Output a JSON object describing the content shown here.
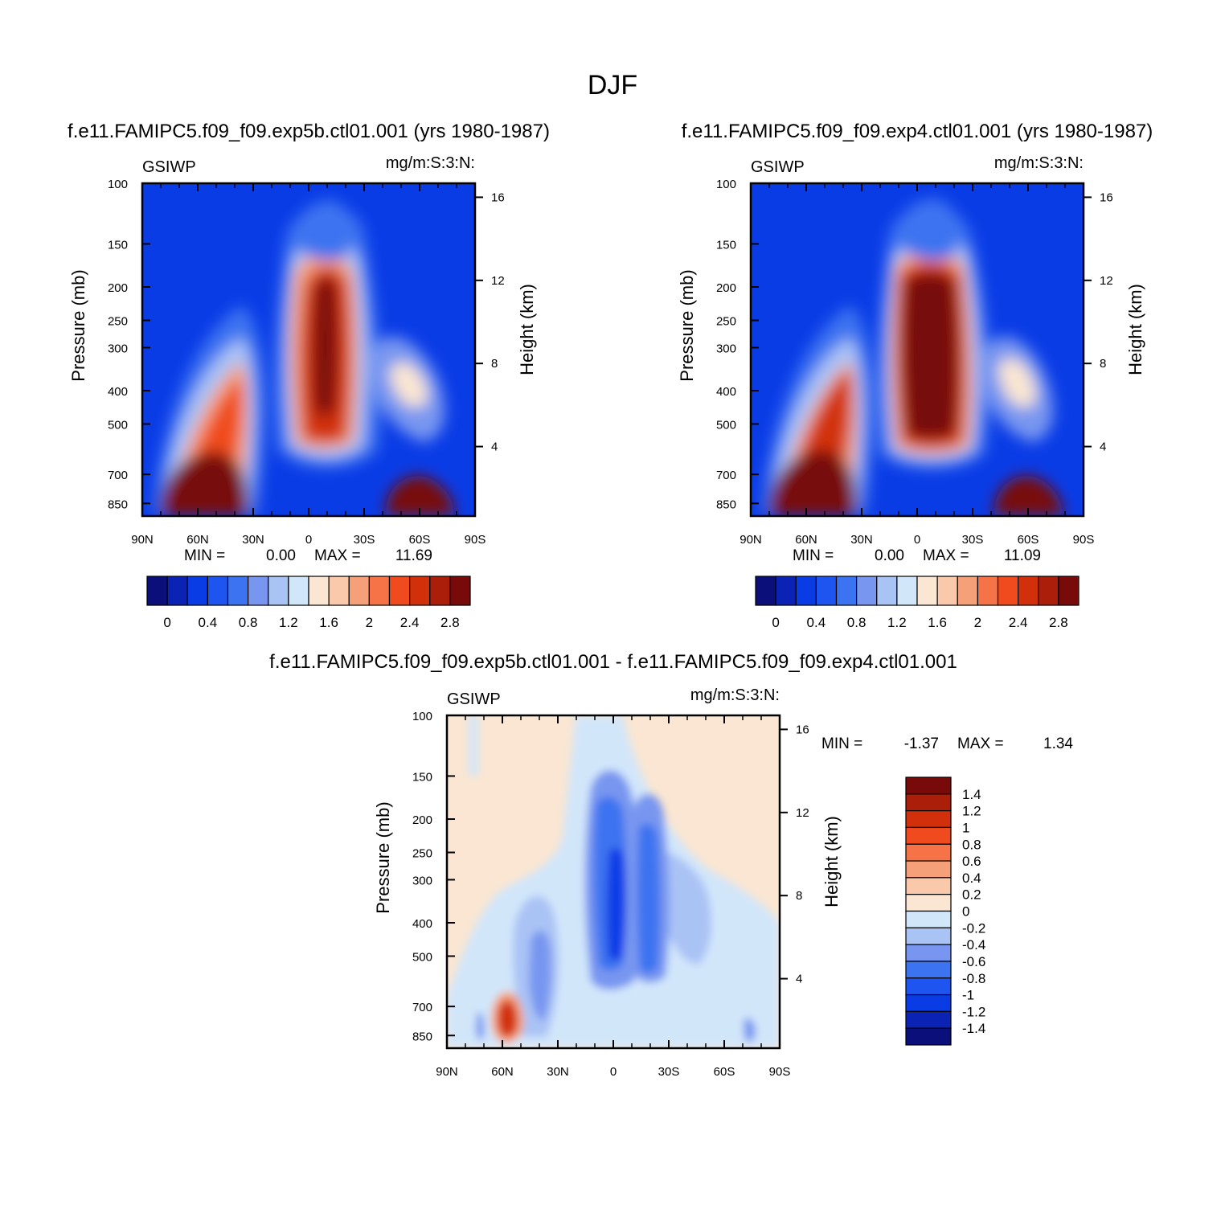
{
  "chart_data": [
    {
      "type": "contour",
      "panel": "left",
      "title": "f.e11.FAMIPC5.f09_f09.exp5b.ctl01.001 (yrs 1980-1987)",
      "left_string": "GSIWP",
      "right_string": "mg/m:S:3:N:",
      "xlabel": "",
      "ylabel": "Pressure (mb)",
      "y2label": "Height (km)",
      "xticks": [
        "90N",
        "60N",
        "30N",
        "0",
        "30S",
        "60S",
        "90S"
      ],
      "yticks": [
        100,
        150,
        200,
        250,
        300,
        400,
        500,
        700,
        850
      ],
      "y2ticks": [
        16,
        12,
        8,
        4
      ],
      "ylim": [
        100,
        925
      ],
      "min_label": "MIN =",
      "min_value": "0.00",
      "max_label": "MAX =",
      "max_value": "11.69",
      "colorbar_labels": [
        "0",
        "0.4",
        "0.8",
        "1.2",
        "1.6",
        "2",
        "2.4",
        "2.8"
      ],
      "colorbar_colors": [
        "#0a0f7a",
        "#0a23b4",
        "#0a3ce6",
        "#1e55f0",
        "#3c73f0",
        "#7896f0",
        "#aac3f5",
        "#d2e6fa",
        "#fae6d2",
        "#fac8aa",
        "#f5a078",
        "#f57346",
        "#f04b1e",
        "#d2300a",
        "#aa1e0a",
        "#780a0a"
      ],
      "features": [
        {
          "lat": 10,
          "p": 350,
          "value": 3.0,
          "desc": "tropical upper maximum"
        },
        {
          "lat": 60,
          "p": 800,
          "value": 3.0,
          "desc": "NH low-level maximum"
        },
        {
          "lat": -58,
          "p": 850,
          "value": 3.0,
          "desc": "SH low-level maximum"
        },
        {
          "lat": 48,
          "p": 430,
          "value": 2.0,
          "desc": "NH mid-level band"
        },
        {
          "lat": -48,
          "p": 400,
          "value": 1.6,
          "desc": "SH mid-level band"
        }
      ]
    },
    {
      "type": "contour",
      "panel": "right",
      "title": "f.e11.FAMIPC5.f09_f09.exp4.ctl01.001 (yrs 1980-1987)",
      "left_string": "GSIWP",
      "right_string": "mg/m:S:3:N:",
      "xlabel": "",
      "ylabel": "Pressure (mb)",
      "y2label": "Height (km)",
      "xticks": [
        "90N",
        "60N",
        "30N",
        "0",
        "30S",
        "60S",
        "90S"
      ],
      "yticks": [
        100,
        150,
        200,
        250,
        300,
        400,
        500,
        700,
        850
      ],
      "y2ticks": [
        16,
        12,
        8,
        4
      ],
      "ylim": [
        100,
        925
      ],
      "min_label": "MIN =",
      "min_value": "0.00",
      "max_label": "MAX =",
      "max_value": "11.09",
      "colorbar_labels": [
        "0",
        "0.4",
        "0.8",
        "1.2",
        "1.6",
        "2",
        "2.4",
        "2.8"
      ],
      "colorbar_colors": [
        "#0a0f7a",
        "#0a23b4",
        "#0a3ce6",
        "#1e55f0",
        "#3c73f0",
        "#7896f0",
        "#aac3f5",
        "#d2e6fa",
        "#fae6d2",
        "#fac8aa",
        "#f5a078",
        "#f57346",
        "#f04b1e",
        "#d2300a",
        "#aa1e0a",
        "#780a0a"
      ],
      "features": [
        {
          "lat": 5,
          "p": 350,
          "value": 3.0,
          "desc": "tropical upper maximum"
        },
        {
          "lat": 60,
          "p": 800,
          "value": 3.0,
          "desc": "NH low-level maximum"
        },
        {
          "lat": -58,
          "p": 850,
          "value": 3.0,
          "desc": "SH low-level maximum"
        },
        {
          "lat": 48,
          "p": 430,
          "value": 2.4,
          "desc": "NH mid-level band"
        },
        {
          "lat": -50,
          "p": 400,
          "value": 1.6,
          "desc": "SH mid-level band"
        }
      ]
    },
    {
      "type": "contour",
      "panel": "difference",
      "title": "f.e11.FAMIPC5.f09_f09.exp5b.ctl01.001 - f.e11.FAMIPC5.f09_f09.exp4.ctl01.001",
      "left_string": "GSIWP",
      "right_string": "mg/m:S:3:N:",
      "xlabel": "",
      "ylabel": "Pressure (mb)",
      "y2label": "Height (km)",
      "xticks": [
        "90N",
        "60N",
        "30N",
        "0",
        "30S",
        "60S",
        "90S"
      ],
      "yticks": [
        100,
        150,
        200,
        250,
        300,
        400,
        500,
        700,
        850
      ],
      "y2ticks": [
        16,
        12,
        8,
        4
      ],
      "ylim": [
        100,
        925
      ],
      "min_label": "MIN =",
      "min_value": "-1.37",
      "max_label": "MAX =",
      "max_value": "1.34",
      "colorbar_labels": [
        "1.4",
        "1.2",
        "1",
        "0.8",
        "0.6",
        "0.4",
        "0.2",
        "0",
        "-0.2",
        "-0.4",
        "-0.6",
        "-0.8",
        "-1",
        "-1.2",
        "-1.4"
      ],
      "colorbar_colors": [
        "#780a0a",
        "#aa1e0a",
        "#d2300a",
        "#f04b1e",
        "#f57346",
        "#f5a078",
        "#fac8aa",
        "#fae6d2",
        "#d2e6fa",
        "#aac3f5",
        "#7896f0",
        "#3c73f0",
        "#1e55f0",
        "#0a3ce6",
        "#0a23b4",
        "#0a0f7a"
      ],
      "features": [
        {
          "lat": 2,
          "p": 380,
          "value": -1.2,
          "desc": "tropical negative core"
        },
        {
          "lat": -18,
          "p": 420,
          "value": -1.0,
          "desc": "SH tropical negative core"
        },
        {
          "lat": 40,
          "p": 550,
          "value": -0.6,
          "desc": "NH mid-level negative"
        },
        {
          "lat": 58,
          "p": 800,
          "value": 1.34,
          "desc": "NH low-level positive maximum"
        }
      ]
    }
  ],
  "figure": {
    "title": "DJF"
  }
}
